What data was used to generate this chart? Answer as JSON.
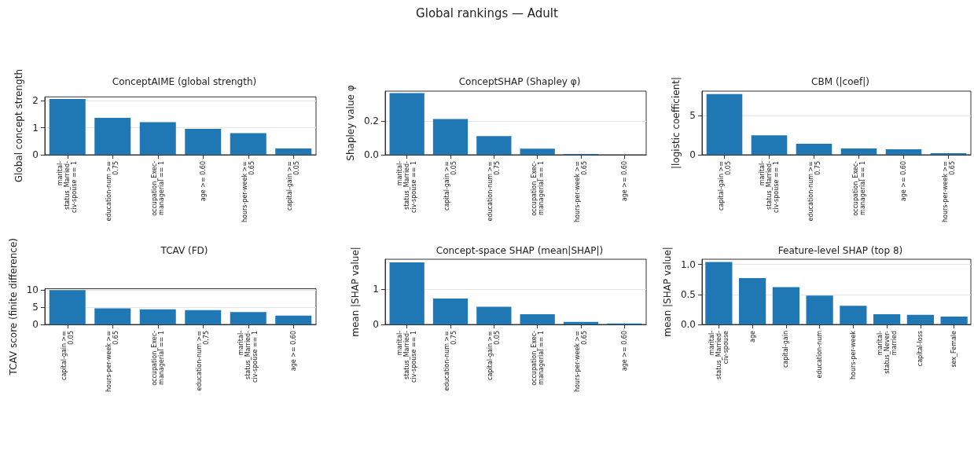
{
  "chart_data": [
    {
      "type": "bar",
      "title": "ConceptAIME (global strength)",
      "ylabel": "Global concept strength",
      "annotations": [
        "Global rankings — Adult"
      ],
      "categories": [
        "marital-status_Married-civ-spouse == 1",
        "education-num >= 0.75",
        "occupation_Exec-managerial == 1",
        "age >= 0.60",
        "hours-per-week >= 0.65",
        "capital-gain >= 0.05"
      ],
      "values": [
        2.07,
        1.37,
        1.21,
        0.96,
        0.8,
        0.23
      ],
      "color": "#1f77b4",
      "ylim": [
        0,
        2.15
      ],
      "yticks": [
        0,
        1,
        2
      ],
      "grid": "y"
    },
    {
      "type": "bar",
      "title": "ConceptSHAP (Shapley φ)",
      "ylabel": "Shapley value φ",
      "categories": [
        "marital-status_Married-civ-spouse == 1",
        "capital-gain >= 0.05",
        "education-num >= 0.75",
        "occupation_Exec-managerial == 1",
        "hours-per-week >= 0.65",
        "age >= 0.60"
      ],
      "values": [
        0.365,
        0.212,
        0.11,
        0.036,
        0.005,
        0
      ],
      "color": "#1f77b4",
      "ylim": [
        0,
        0.377
      ],
      "yticks": [
        {
          "value": 0,
          "label": "0.0"
        },
        {
          "value": 0.2,
          "label": "0.2"
        }
      ],
      "grid": "y"
    },
    {
      "type": "bar",
      "title": "CBM (|coef|)",
      "ylabel": "|logistic coefficient|",
      "categories": [
        "capital-gain >= 0.05",
        "marital-status_Married-civ-spouse == 1",
        "education-num >= 0.75",
        "occupation_Exec-managerial == 1",
        "age >= 0.60",
        "hours-per-week >= 0.65"
      ],
      "values": [
        7.8,
        2.5,
        1.4,
        0.8,
        0.7,
        0.2
      ],
      "color": "#1f77b4",
      "ylim": [
        0,
        8.17
      ],
      "yticks": [
        0,
        5
      ],
      "grid": "y"
    },
    {
      "type": "bar",
      "title": "TCAV (FD)",
      "ylabel": "TCAV score (finite difference)",
      "categories": [
        "capital-gain >= 0.05",
        "hours-per-week >= 0.65",
        "occupation_Exec-managerial == 1",
        "education-num >= 0.75",
        "marital-status_Married-civ-spouse == 1",
        "age >= 0.60"
      ],
      "values": [
        10.0,
        4.7,
        4.4,
        4.2,
        3.6,
        2.6
      ],
      "color": "#1f77b4",
      "ylim": [
        0,
        10.4
      ],
      "yticks": [
        0,
        5,
        10
      ],
      "grid": "y"
    },
    {
      "type": "bar",
      "title": "Concept-space SHAP (mean|SHAP|)",
      "ylabel": "mean |SHAP value|",
      "categories": [
        "marital-status_Married-civ-spouse == 1",
        "education-num >= 0.75",
        "capital-gain >= 0.05",
        "occupation_Exec-managerial == 1",
        "hours-per-week >= 0.65",
        "age >= 0.60"
      ],
      "values": [
        1.75,
        0.73,
        0.5,
        0.29,
        0.07,
        0.03
      ],
      "color": "#1f77b4",
      "ylim": [
        0,
        1.84
      ],
      "yticks": [
        0,
        1
      ],
      "grid": "y"
    },
    {
      "type": "bar",
      "title": "Feature-level SHAP (top 8)",
      "ylabel": "mean |SHAP value|",
      "categories": [
        "marital-status_Married-civ-spouse",
        "age",
        "capital-gain",
        "education-num",
        "hours-per-week",
        "marital-status_Never-married",
        "capital-loss",
        "sex_Female"
      ],
      "values": [
        1.04,
        0.77,
        0.62,
        0.48,
        0.31,
        0.17,
        0.16,
        0.13
      ],
      "color": "#1f77b4",
      "ylim": [
        0,
        1.085
      ],
      "yticks": [
        {
          "value": 0,
          "label": "0.0"
        },
        {
          "value": 0.5,
          "label": "0.5"
        },
        {
          "value": 1,
          "label": "1.0"
        }
      ],
      "grid": "y"
    }
  ]
}
